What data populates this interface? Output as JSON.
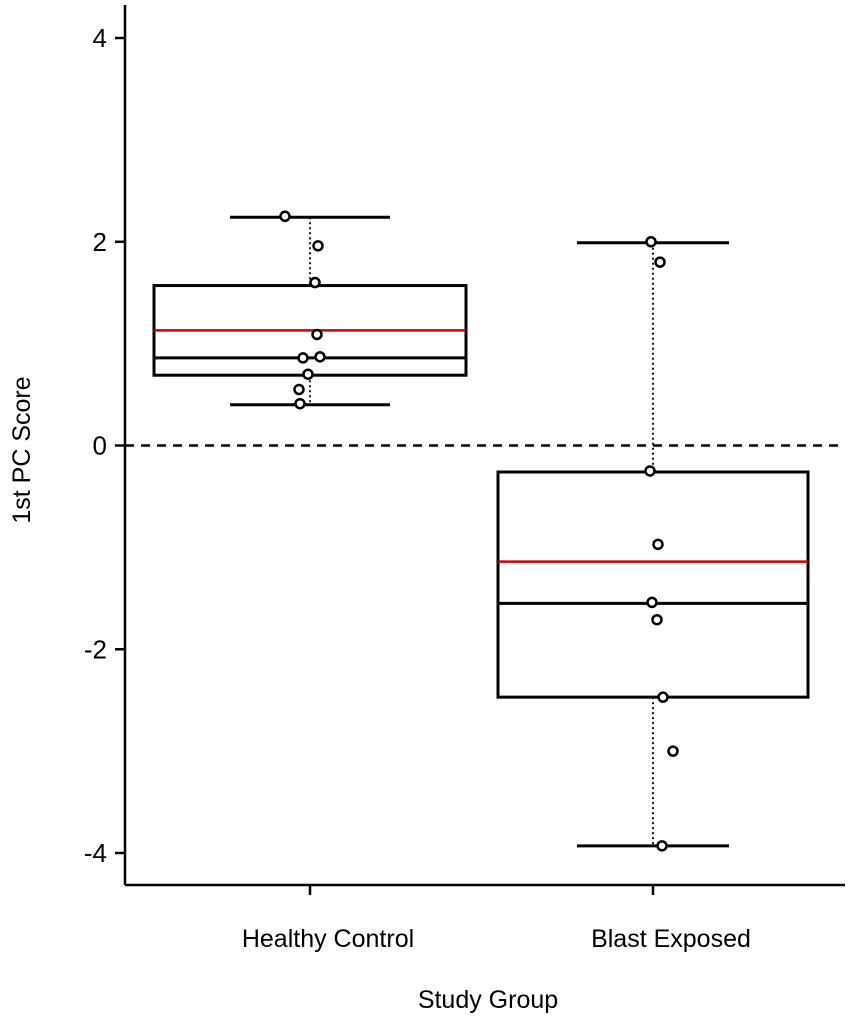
{
  "chart_data": {
    "type": "box",
    "xlabel": "Study Group",
    "ylabel": "1st PC Score",
    "ylim": [
      -4.2,
      4.2
    ],
    "yticks": [
      4,
      2,
      0,
      -2,
      -4
    ],
    "ytick_labels": [
      "4",
      "2",
      "0",
      "-2",
      "-4"
    ],
    "reference_line": 0,
    "colors": {
      "box": "#000000",
      "mean_line": "#cc0000",
      "points": "#000000"
    },
    "groups": [
      {
        "name": "Healthy Control",
        "whisker_low": 0.4,
        "q1": 0.69,
        "median": 0.86,
        "mean": 1.13,
        "q3": 1.57,
        "whisker_high": 2.24,
        "points": [
          {
            "offset": -0.25,
            "y": 2.25
          },
          {
            "offset": 0.08,
            "y": 1.96
          },
          {
            "offset": 0.05,
            "y": 1.6
          },
          {
            "offset": 0.07,
            "y": 1.09
          },
          {
            "offset": -0.07,
            "y": 0.86
          },
          {
            "offset": 0.1,
            "y": 0.87
          },
          {
            "offset": -0.02,
            "y": 0.7
          },
          {
            "offset": -0.11,
            "y": 0.55
          },
          {
            "offset": -0.1,
            "y": 0.41
          }
        ]
      },
      {
        "name": "Blast Exposed",
        "whisker_low": -3.93,
        "q1": -2.47,
        "median": -1.55,
        "mean": -1.14,
        "q3": -0.26,
        "whisker_high": 1.99,
        "points": [
          {
            "offset": -0.02,
            "y": 2.0
          },
          {
            "offset": 0.07,
            "y": 1.8
          },
          {
            "offset": -0.03,
            "y": -0.25
          },
          {
            "offset": 0.05,
            "y": -0.97
          },
          {
            "offset": -0.01,
            "y": -1.54
          },
          {
            "offset": 0.04,
            "y": -1.71
          },
          {
            "offset": 0.1,
            "y": -2.47
          },
          {
            "offset": 0.2,
            "y": -3.0
          },
          {
            "offset": 0.09,
            "y": -3.93
          }
        ]
      }
    ]
  }
}
